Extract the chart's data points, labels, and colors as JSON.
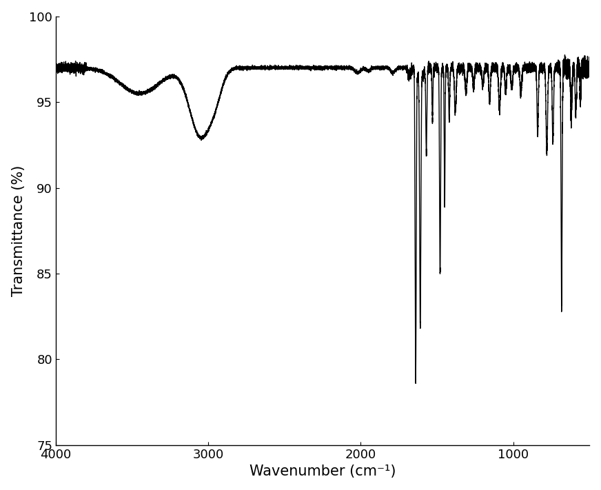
{
  "xlabel": "Wavenumber (cm⁻¹)",
  "ylabel": "Transmittance (%)",
  "xlim": [
    4000,
    500
  ],
  "ylim": [
    75,
    100
  ],
  "yticks": [
    75,
    80,
    85,
    90,
    95,
    100
  ],
  "xticks": [
    4000,
    3000,
    2000,
    1000
  ],
  "line_color": "#000000",
  "line_width": 1.0,
  "background_color": "#ffffff",
  "xlabel_fontsize": 15,
  "ylabel_fontsize": 15,
  "tick_fontsize": 13
}
